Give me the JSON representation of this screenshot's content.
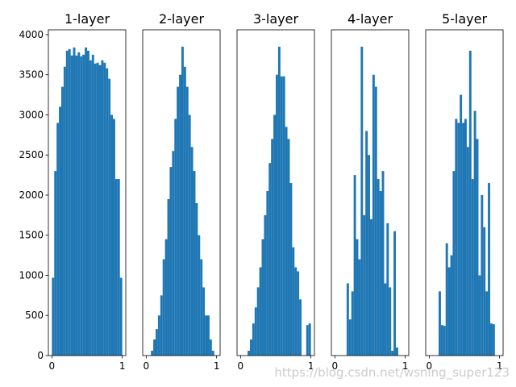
{
  "chart_data": [
    {
      "type": "histogram",
      "title": "1-layer",
      "color": "#1f77b4",
      "bins": [
        0,
        0.0333,
        0.0667,
        0.1,
        0.1333,
        0.1667,
        0.2,
        0.2333,
        0.2667,
        0.3,
        0.3333,
        0.3667,
        0.4,
        0.4333,
        0.4667,
        0.5,
        0.5333,
        0.5667,
        0.6,
        0.6333,
        0.6667,
        0.7,
        0.7333,
        0.7667,
        0.8,
        0.8333,
        0.8667,
        0.9,
        0.9333,
        0.9667,
        1
      ],
      "values": [
        970,
        2300,
        2900,
        3100,
        3350,
        3600,
        3800,
        3820,
        3740,
        3840,
        3740,
        3780,
        3730,
        3750,
        3840,
        3800,
        3680,
        3750,
        3640,
        3650,
        3620,
        3680,
        3650,
        3580,
        3450,
        3000,
        2950,
        2200,
        2200,
        970
      ],
      "xlim": [
        -0.05,
        1.05
      ],
      "xticks": [
        0,
        1
      ],
      "ylim": [
        0,
        4060
      ],
      "yticks": [
        0,
        500,
        1000,
        1500,
        2000,
        2500,
        3000,
        3500,
        4000
      ]
    },
    {
      "type": "histogram",
      "title": "2-layer",
      "color": "#1f77b4",
      "bins": [
        0,
        0.0333,
        0.0667,
        0.1,
        0.1333,
        0.1667,
        0.2,
        0.2333,
        0.2667,
        0.3,
        0.3333,
        0.3667,
        0.4,
        0.4333,
        0.4667,
        0.5,
        0.5333,
        0.5667,
        0.6,
        0.6333,
        0.6667,
        0.7,
        0.7333,
        0.7667,
        0.8,
        0.8333,
        0.8667,
        0.9,
        0.9333,
        0.9667,
        1
      ],
      "values": [
        0,
        0,
        60,
        200,
        330,
        500,
        750,
        1200,
        1450,
        1950,
        2350,
        2550,
        2950,
        3350,
        3500,
        3850,
        3600,
        3350,
        3000,
        2600,
        2300,
        1900,
        1500,
        1200,
        850,
        500,
        500,
        200,
        60,
        0
      ],
      "xlim": [
        -0.05,
        1.05
      ],
      "xticks": [
        0,
        1
      ],
      "ylim": [
        0,
        4060
      ]
    },
    {
      "type": "histogram",
      "title": "3-layer",
      "color": "#1f77b4",
      "bins": [
        0,
        0.0333,
        0.0667,
        0.1,
        0.1333,
        0.1667,
        0.2,
        0.2333,
        0.2667,
        0.3,
        0.3333,
        0.3667,
        0.4,
        0.4333,
        0.4667,
        0.5,
        0.5333,
        0.5667,
        0.6,
        0.6333,
        0.6667,
        0.7,
        0.7333,
        0.7667,
        0.8,
        0.8333,
        0.8667,
        0.9,
        0.9333,
        0.9667,
        1
      ],
      "values": [
        0,
        0,
        0,
        60,
        200,
        400,
        600,
        850,
        1100,
        1450,
        1750,
        2050,
        2400,
        2700,
        3000,
        3500,
        3850,
        3480,
        3480,
        2850,
        2700,
        2150,
        1350,
        1100,
        1050,
        700,
        0,
        0,
        380,
        400
      ],
      "xlim": [
        -0.05,
        1.05
      ],
      "xticks": [
        0,
        1
      ],
      "ylim": [
        0,
        4060
      ]
    },
    {
      "type": "histogram",
      "title": "4-layer",
      "color": "#1f77b4",
      "bins": [
        0,
        0.0333,
        0.0667,
        0.1,
        0.1333,
        0.1667,
        0.2,
        0.2333,
        0.2667,
        0.3,
        0.3333,
        0.3667,
        0.4,
        0.4333,
        0.4667,
        0.5,
        0.5333,
        0.5667,
        0.6,
        0.6333,
        0.6667,
        0.7,
        0.7333,
        0.7667,
        0.8,
        0.8333,
        0.8667,
        0.9,
        0.9333,
        0.9667,
        1
      ],
      "values": [
        0,
        0,
        0,
        0,
        0,
        900,
        450,
        800,
        2250,
        1450,
        1200,
        3850,
        1750,
        2800,
        2500,
        1700,
        3500,
        3350,
        2200,
        2050,
        2300,
        900,
        1650,
        850,
        60,
        1550,
        100,
        0,
        0,
        0
      ],
      "xlim": [
        -0.05,
        1.05
      ],
      "xticks": [
        0,
        1
      ],
      "ylim": [
        0,
        4060
      ]
    },
    {
      "type": "histogram",
      "title": "5-layer",
      "color": "#1f77b4",
      "bins": [
        0,
        0.0333,
        0.0667,
        0.1,
        0.1333,
        0.1667,
        0.2,
        0.2333,
        0.2667,
        0.3,
        0.3333,
        0.3667,
        0.4,
        0.4333,
        0.4667,
        0.5,
        0.5333,
        0.5667,
        0.6,
        0.6333,
        0.6667,
        0.7,
        0.7333,
        0.7667,
        0.8,
        0.8333,
        0.8667,
        0.9,
        0.9333,
        0.9667,
        1
      ],
      "values": [
        0,
        0,
        0,
        0,
        800,
        380,
        370,
        1400,
        1100,
        1250,
        2300,
        2950,
        2900,
        3250,
        2900,
        2950,
        2600,
        3800,
        2200,
        3050,
        2700,
        1000,
        2000,
        1600,
        800,
        2150,
        400,
        390,
        0,
        0
      ],
      "xlim": [
        -0.05,
        1.05
      ],
      "xticks": [
        0,
        1
      ],
      "ylim": [
        0,
        4060
      ]
    }
  ],
  "watermark": "https://blog.csdn.net/wsning_super123"
}
